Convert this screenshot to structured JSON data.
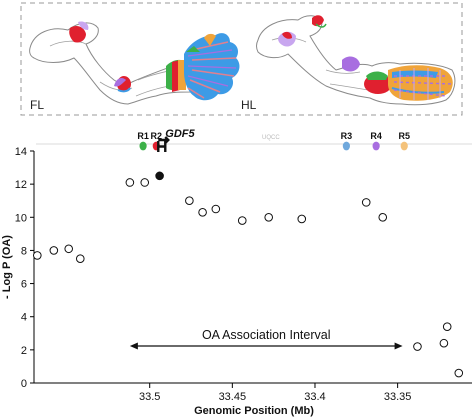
{
  "panels": {
    "forelimb_label": "FL",
    "hindlimb_label": "HL"
  },
  "colors": {
    "outline": "#8a8a8a",
    "red": "#e0202f",
    "magenta": "#d4287e",
    "violet": "#a86ee0",
    "lavender": "#c8a6ef",
    "blue": "#3d9be6",
    "orange": "#f0a43a",
    "green": "#3cb048"
  },
  "gene": {
    "name": "GDF5",
    "x": 33.493
  },
  "regions": [
    {
      "label": "R1",
      "x": 33.504,
      "color": "#3cb048"
    },
    {
      "label": "R2",
      "x": 33.496,
      "color": "#e0202f"
    },
    {
      "label": "R3",
      "x": 33.381,
      "color": "#6fa8dc"
    },
    {
      "label": "R4",
      "x": 33.363,
      "color": "#a86ee0"
    },
    {
      "label": "R5",
      "x": 33.346,
      "color": "#f4c27a"
    }
  ],
  "track_genes": [
    "UQCC"
  ],
  "interval": {
    "label": "OA Association Interval",
    "start": 33.512,
    "end": 33.347
  },
  "chart_data": {
    "type": "scatter",
    "xlabel": "Genomic Position (Mb)",
    "ylabel": "- Log P (OA)",
    "xlim": [
      33.57,
      33.305
    ],
    "ylim": [
      0,
      14
    ],
    "xticks": [
      {
        "value": 33.5,
        "label": "33.5"
      },
      {
        "value": 33.45,
        "label": "33.45"
      },
      {
        "value": 33.4,
        "label": "33.4"
      },
      {
        "value": 33.35,
        "label": "33.35"
      }
    ],
    "yticks": [
      0,
      2,
      4,
      6,
      8,
      10,
      12,
      14
    ],
    "points": [
      {
        "x": 33.568,
        "y": 7.7,
        "filled": false
      },
      {
        "x": 33.558,
        "y": 8.0,
        "filled": false
      },
      {
        "x": 33.549,
        "y": 8.1,
        "filled": false
      },
      {
        "x": 33.542,
        "y": 7.5,
        "filled": false
      },
      {
        "x": 33.512,
        "y": 12.1,
        "filled": false
      },
      {
        "x": 33.503,
        "y": 12.1,
        "filled": false
      },
      {
        "x": 33.494,
        "y": 12.5,
        "filled": true
      },
      {
        "x": 33.476,
        "y": 11.0,
        "filled": false
      },
      {
        "x": 33.468,
        "y": 10.3,
        "filled": false
      },
      {
        "x": 33.46,
        "y": 10.5,
        "filled": false
      },
      {
        "x": 33.444,
        "y": 9.8,
        "filled": false
      },
      {
        "x": 33.428,
        "y": 10.0,
        "filled": false
      },
      {
        "x": 33.408,
        "y": 9.9,
        "filled": false
      },
      {
        "x": 33.369,
        "y": 10.9,
        "filled": false
      },
      {
        "x": 33.359,
        "y": 10.0,
        "filled": false
      },
      {
        "x": 33.338,
        "y": 2.2,
        "filled": false
      },
      {
        "x": 33.322,
        "y": 2.4,
        "filled": false
      },
      {
        "x": 33.32,
        "y": 3.4,
        "filled": false
      },
      {
        "x": 33.313,
        "y": 0.6,
        "filled": false
      }
    ]
  }
}
